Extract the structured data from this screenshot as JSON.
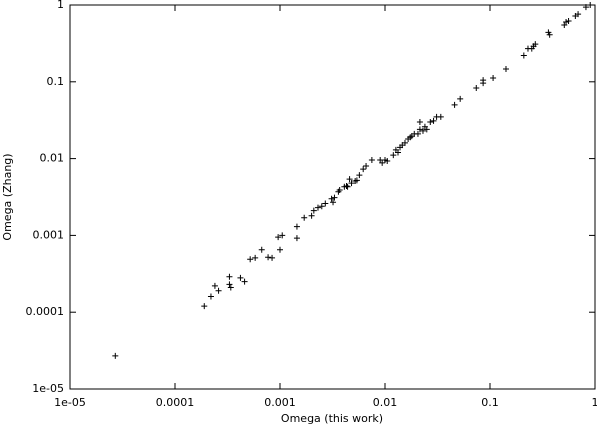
{
  "chart_data": {
    "type": "scatter",
    "xlabel": "Omega (this work)",
    "ylabel": "Omega (Zhang)",
    "xscale": "log",
    "yscale": "log",
    "xlim": [
      1e-05,
      1
    ],
    "ylim": [
      1e-05,
      1
    ],
    "xticks": [
      {
        "value": 1e-05,
        "label": "1e-05"
      },
      0.0001,
      0.001,
      0.01,
      0.1,
      1
    ],
    "yticks": [
      {
        "value": 1e-05,
        "label": "1e-05"
      },
      0.0001,
      0.001,
      0.01,
      0.1,
      1
    ],
    "color": "#000000",
    "marker": "+",
    "x": [
      2.7e-05,
      0.00019,
      0.00022,
      0.00024,
      0.00026,
      0.00033,
      0.00033,
      0.00034,
      0.00042,
      0.00046,
      0.00052,
      0.00058,
      0.00067,
      0.00077,
      0.00084,
      0.00096,
      0.001,
      0.00105,
      0.00145,
      0.00145,
      0.0017,
      0.002,
      0.0021,
      0.0023,
      0.0025,
      0.0027,
      0.0031,
      0.0032,
      0.0033,
      0.0036,
      0.0037,
      0.0041,
      0.0043,
      0.0044,
      0.0046,
      0.0048,
      0.0052,
      0.0054,
      0.0057,
      0.0062,
      0.0066,
      0.0075,
      0.009,
      0.0094,
      0.01,
      0.0105,
      0.012,
      0.0127,
      0.0133,
      0.0139,
      0.0146,
      0.0155,
      0.0166,
      0.0174,
      0.018,
      0.019,
      0.0206,
      0.0215,
      0.0215,
      0.023,
      0.024,
      0.025,
      0.027,
      0.029,
      0.031,
      0.034,
      0.046,
      0.052,
      0.074,
      0.086,
      0.086,
      0.107,
      0.142,
      0.21,
      0.23,
      0.25,
      0.26,
      0.27,
      0.36,
      0.37,
      0.51,
      0.53,
      0.56,
      0.65,
      0.69,
      0.82,
      0.9
    ],
    "values": [
      2.7e-05,
      0.00012,
      0.00016,
      0.00022,
      0.00019,
      0.00023,
      0.00029,
      0.00021,
      0.00028,
      0.00025,
      0.00049,
      0.00051,
      0.00065,
      0.00052,
      0.00051,
      0.00095,
      0.00065,
      0.001,
      0.00092,
      0.0013,
      0.0017,
      0.0018,
      0.0021,
      0.0023,
      0.0024,
      0.0026,
      0.003,
      0.0027,
      0.0031,
      0.0037,
      0.0039,
      0.0043,
      0.0044,
      0.0043,
      0.0054,
      0.0048,
      0.0051,
      0.0052,
      0.0061,
      0.0073,
      0.008,
      0.0096,
      0.0096,
      0.0088,
      0.0096,
      0.0093,
      0.0111,
      0.013,
      0.012,
      0.014,
      0.015,
      0.016,
      0.018,
      0.019,
      0.0196,
      0.021,
      0.021,
      0.024,
      0.03,
      0.023,
      0.026,
      0.024,
      0.03,
      0.031,
      0.035,
      0.035,
      0.05,
      0.06,
      0.083,
      0.105,
      0.096,
      0.112,
      0.147,
      0.22,
      0.27,
      0.27,
      0.29,
      0.31,
      0.44,
      0.41,
      0.55,
      0.6,
      0.62,
      0.72,
      0.76,
      0.94,
      1.0
    ]
  }
}
